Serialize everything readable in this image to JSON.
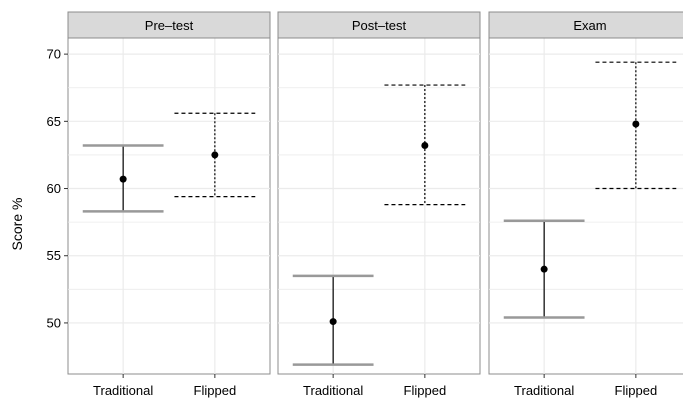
{
  "chart_data": {
    "type": "errorbar",
    "ylabel": "Score %",
    "yticks": [
      50,
      55,
      60,
      65,
      70
    ],
    "ylim": [
      46.2,
      71.2
    ],
    "categories": [
      "Traditional",
      "Flipped"
    ],
    "grid": true,
    "facets": [
      {
        "title": "Pre–test",
        "points": [
          {
            "group": "Traditional",
            "mean": 60.7,
            "lower": 58.3,
            "upper": 63.2,
            "line": "solid"
          },
          {
            "group": "Flipped",
            "mean": 62.5,
            "lower": 59.4,
            "upper": 65.6,
            "line": "dashed"
          }
        ]
      },
      {
        "title": "Post–test",
        "points": [
          {
            "group": "Traditional",
            "mean": 50.1,
            "lower": 46.9,
            "upper": 53.5,
            "line": "solid"
          },
          {
            "group": "Flipped",
            "mean": 63.2,
            "lower": 58.8,
            "upper": 67.7,
            "line": "dashed"
          }
        ]
      },
      {
        "title": "Exam",
        "points": [
          {
            "group": "Traditional",
            "mean": 54.0,
            "lower": 50.4,
            "upper": 57.6,
            "line": "solid"
          },
          {
            "group": "Flipped",
            "mean": 64.8,
            "lower": 60.0,
            "upper": 69.4,
            "line": "dashed"
          }
        ]
      }
    ],
    "colors": {
      "panel_bg": "#ffffff",
      "strip_bg": "#d9d9d9",
      "border": "#8c8c8c",
      "grid": "#ebebeb",
      "bar": "#000000",
      "cap_solid": "#999999",
      "text": "#000000"
    }
  }
}
